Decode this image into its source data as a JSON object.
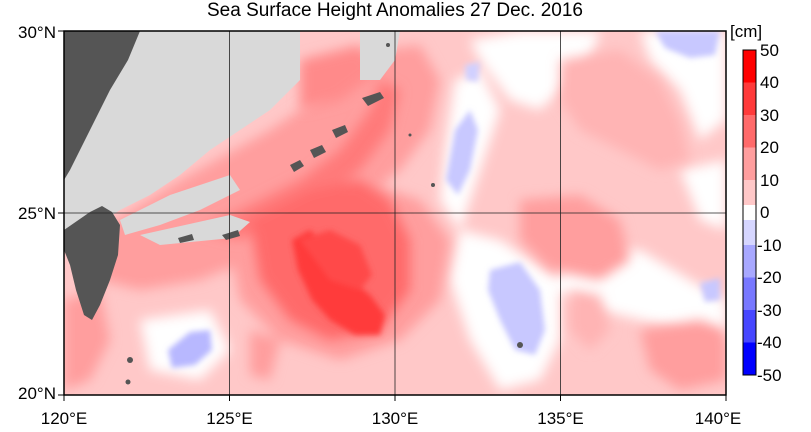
{
  "title": "Sea Surface Height Anomalies  27 Dec. 2016",
  "colorbar": {
    "unit": "[cm]",
    "labels": [
      "50",
      "40",
      "30",
      "20",
      "10",
      "0",
      "-10",
      "-20",
      "-30",
      "-40",
      "-50"
    ],
    "colors": {
      "40_50": "#ff0000",
      "30_40": "#ff3a3a",
      "20_30": "#ff6a6a",
      "10_20": "#ff9e9e",
      "0_10": "#ffc8c8",
      "neutral": "#ffffff",
      "m10_0": "#d6d6ff",
      "m20_m10": "#a8a8ff",
      "m30_m20": "#7878ff",
      "m40_m30": "#4646ff",
      "m50_m40": "#0000ff"
    }
  },
  "axes": {
    "x_ticks": [
      "120°E",
      "125°E",
      "130°E",
      "135°E",
      "140°E"
    ],
    "y_ticks": [
      "30°N",
      "25°N",
      "20°N"
    ]
  },
  "colors": {
    "land": "#d9d9d9",
    "taiwan": "#555555",
    "grid": "#222222"
  }
}
